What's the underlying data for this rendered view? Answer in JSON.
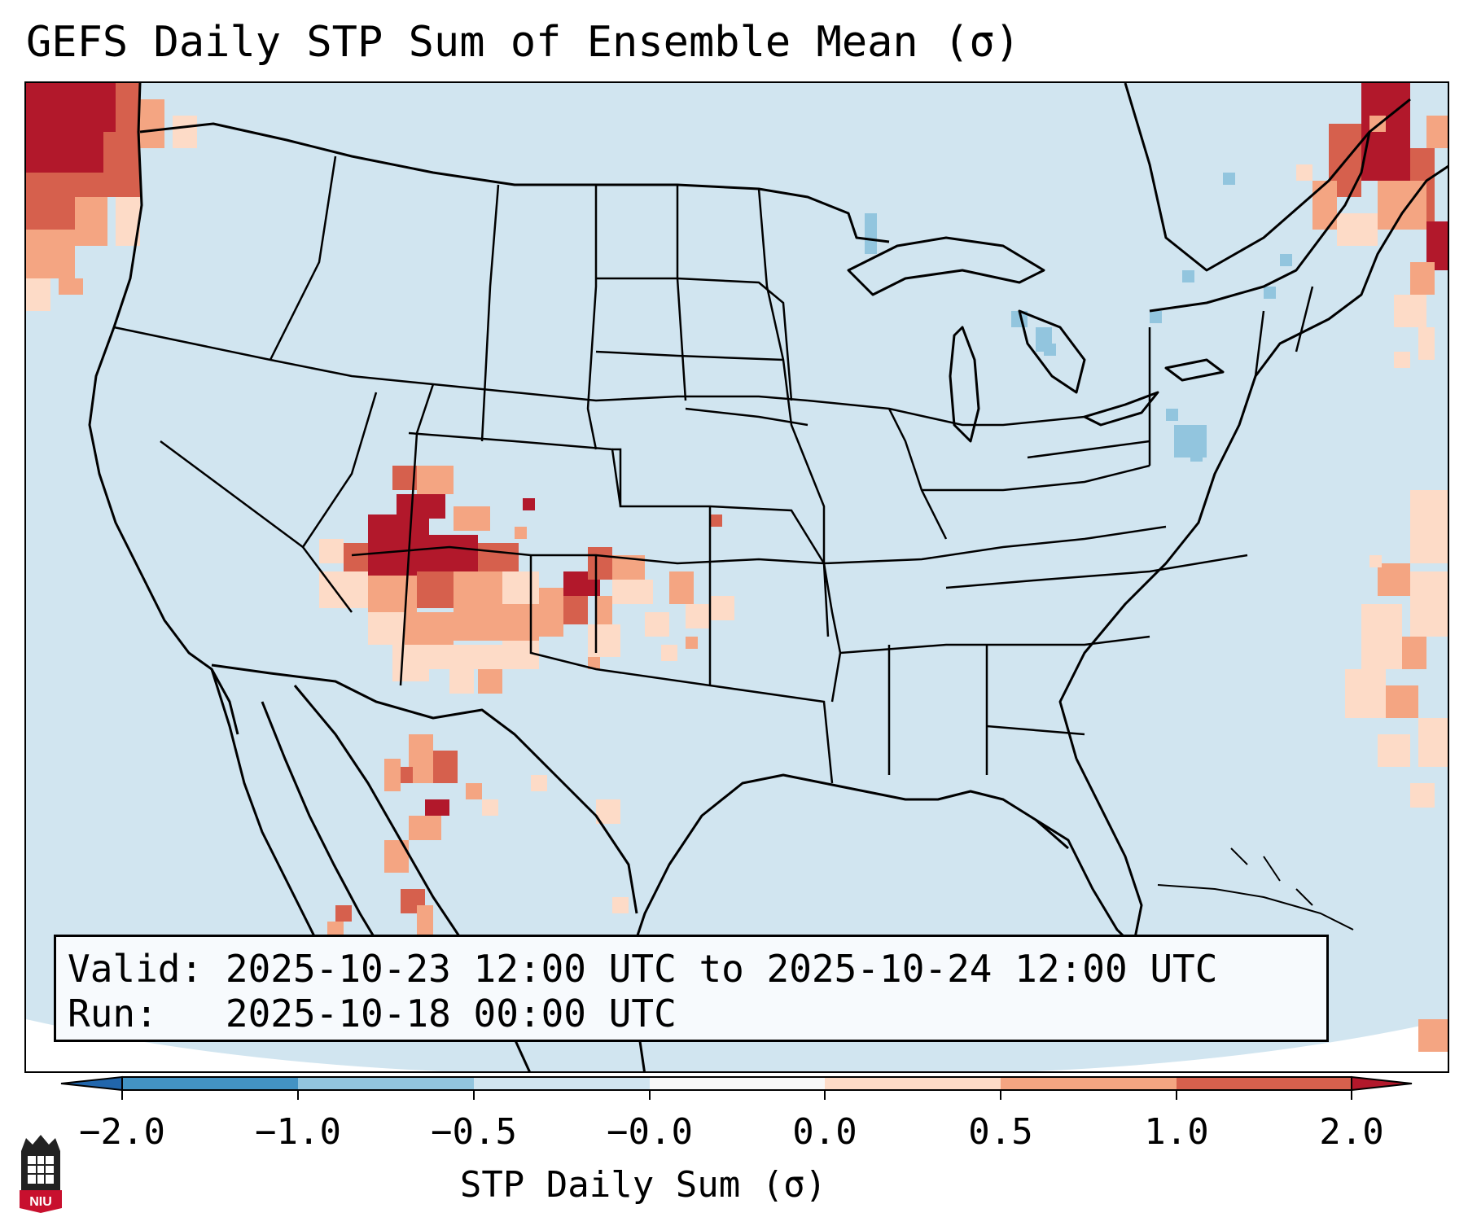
{
  "title": "GEFS Daily STP Sum of Ensemble Mean (σ)",
  "info": {
    "valid_label": "Valid:",
    "valid_value": "2025-10-23 12:00 UTC to 2025-10-24 12:00 UTC",
    "run_label": "Run:",
    "run_value": "2025-10-18 00:00 UTC"
  },
  "colorbar": {
    "label": "STP Daily Sum (σ)",
    "ticks": [
      "−2.0",
      "−1.0",
      "−0.5",
      "−0.0",
      "0.0",
      "0.5",
      "1.0",
      "2.0"
    ],
    "bins": [
      {
        "from": "-2.0",
        "to": "-1.0",
        "color": "#4393c3"
      },
      {
        "from": "-1.0",
        "to": "-0.5",
        "color": "#92c5de"
      },
      {
        "from": "-0.5",
        "to": "-0.0",
        "color": "#d1e5f0"
      },
      {
        "from": "-0.0",
        "to": "0.0",
        "color": "#f7f7f7"
      },
      {
        "from": "0.0",
        "to": "0.5",
        "color": "#fddbc7"
      },
      {
        "from": "0.5",
        "to": "1.0",
        "color": "#f4a582"
      },
      {
        "from": "1.0",
        "to": "2.0",
        "color": "#d6604d"
      }
    ],
    "extend_low_color": "#2166ac",
    "extend_high_color": "#b2182b"
  },
  "map": {
    "background_color": "#d1e5f0",
    "regions": [
      {
        "name": "Pacific Northwest offshore",
        "level": "above 2.0"
      },
      {
        "name": "Four Corners / Colorado-New Mexico",
        "level": "above 2.0"
      },
      {
        "name": "Oklahoma-Texas Panhandle",
        "level": "1.0 to 2.0"
      },
      {
        "name": "Northern Mexico",
        "level": "0.5 to 2.0"
      },
      {
        "name": "Eastern Canada / Maritimes",
        "level": "above 2.0"
      },
      {
        "name": "Western Atlantic offshore",
        "level": "0.0 to 1.0"
      },
      {
        "name": "Great Lakes / Pennsylvania",
        "level": "-1.0 to -0.5"
      }
    ]
  },
  "logo": {
    "text": "NIU"
  }
}
